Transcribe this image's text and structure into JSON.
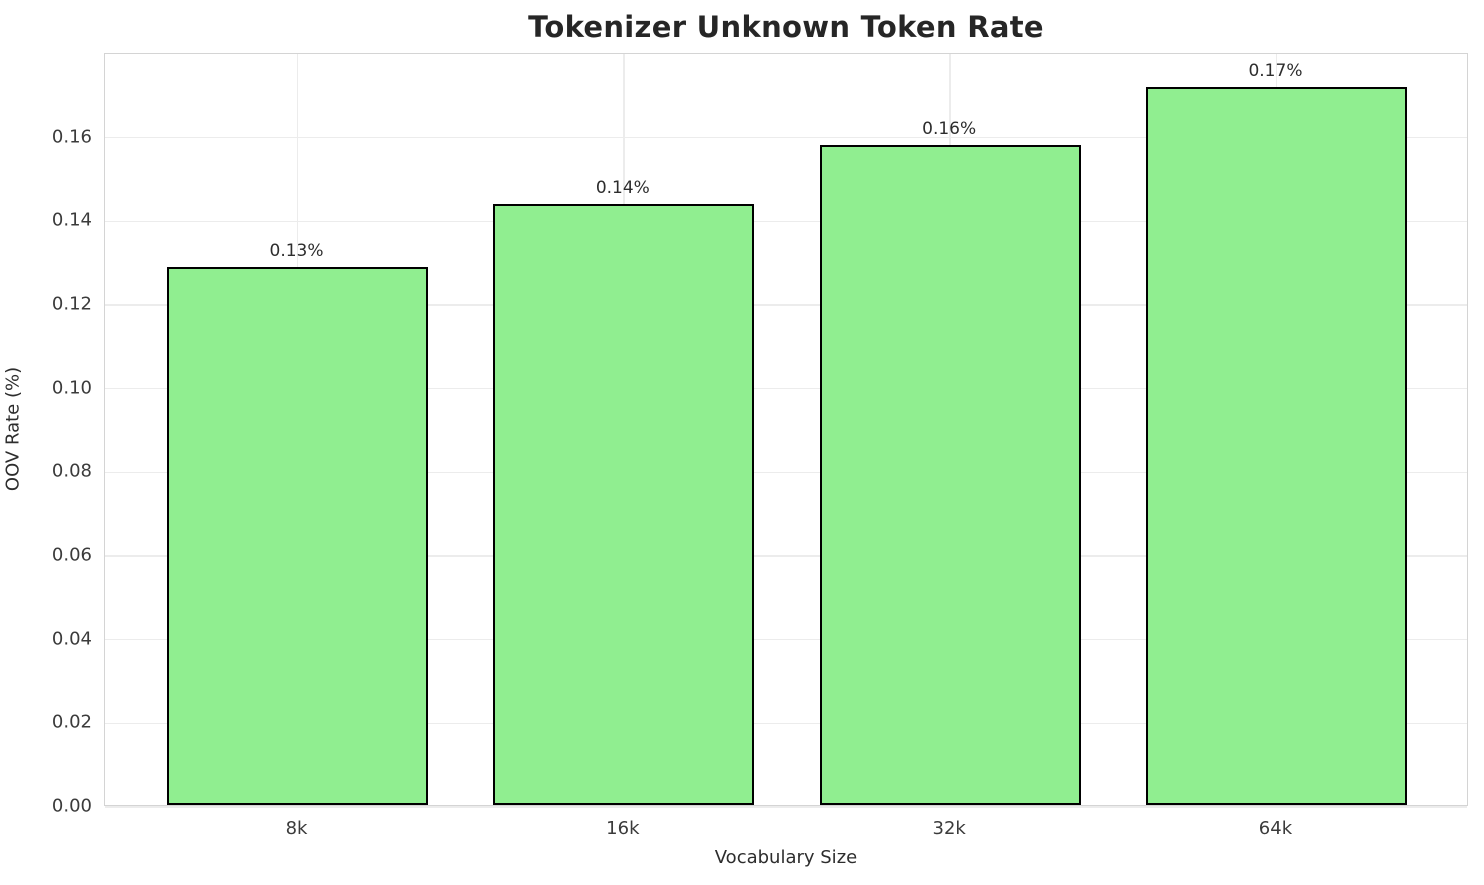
{
  "chart_data": {
    "type": "bar",
    "title": "Tokenizer Unknown Token Rate",
    "xlabel": "Vocabulary Size",
    "ylabel": "OOV Rate (%)",
    "categories": [
      "8k",
      "16k",
      "32k",
      "64k"
    ],
    "values": [
      0.1287,
      0.1436,
      0.1578,
      0.1716
    ],
    "bar_labels": [
      "0.13%",
      "0.14%",
      "0.16%",
      "0.17%"
    ],
    "ylim": [
      0,
      0.18
    ],
    "yticks": [
      0.0,
      0.02,
      0.04,
      0.06,
      0.08,
      0.1,
      0.12,
      0.14,
      0.16
    ],
    "ytick_labels": [
      "0.00",
      "0.02",
      "0.04",
      "0.06",
      "0.08",
      "0.10",
      "0.12",
      "0.14",
      "0.16"
    ],
    "grid": true,
    "legend": null,
    "bar_color": "#90EE90",
    "bar_edge_color": "#000000",
    "grid_color": "#ececec",
    "spine_color": "#d4d4d4"
  }
}
